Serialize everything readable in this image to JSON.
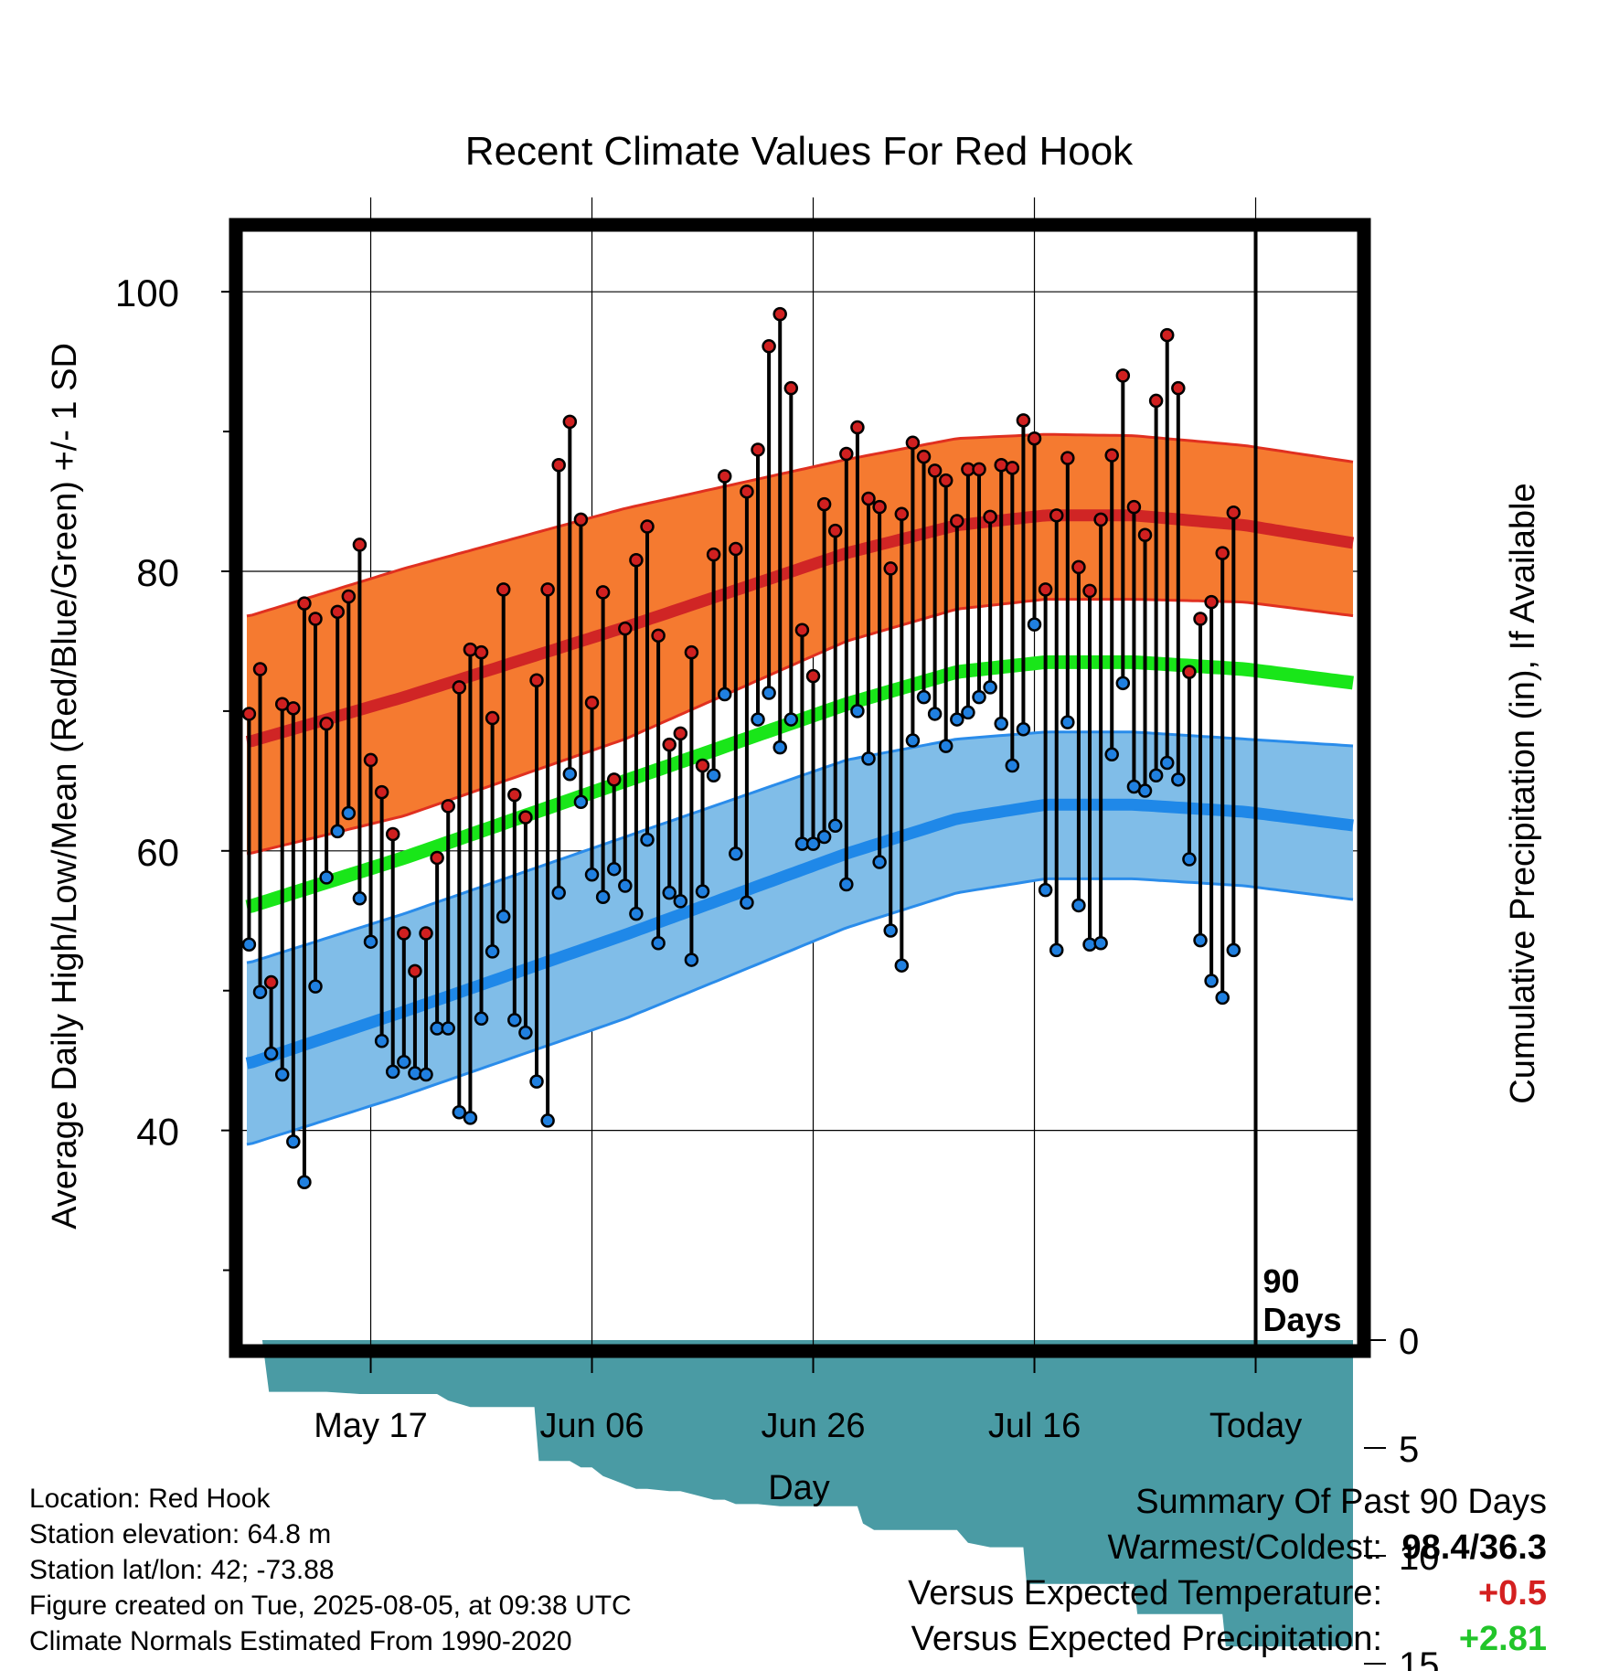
{
  "chart_data": {
    "type": "line",
    "title": "Recent Climate Values For Red Hook",
    "xlabel": "Day",
    "ylabel_left": "Average Daily High/Low/Mean (Red/Blue/Green) +/- 1 SD",
    "ylabel_right": "Cumulative Precipitation (in), If Available",
    "x_ticks": [
      {
        "day": 17,
        "label": "May 17"
      },
      {
        "day": 37,
        "label": "Jun 06"
      },
      {
        "day": 57,
        "label": "Jun 26"
      },
      {
        "day": 77,
        "label": "Jul 16"
      },
      {
        "day": 97,
        "label": "Today"
      }
    ],
    "xlim": [
      5.8,
      105.8
    ],
    "ylim_left": [
      25,
      104
    ],
    "y_ticks_left": [
      40,
      60,
      80,
      100
    ],
    "ylim_right": [
      0,
      15
    ],
    "y_ticks_right": [
      0,
      5,
      10,
      15
    ],
    "grid": true,
    "today_day": 97,
    "today_label": "90 Days",
    "normals": {
      "days": [
        6,
        20,
        40,
        60,
        70,
        78,
        86,
        96,
        106
      ],
      "high_mean": [
        67.8,
        71.0,
        76.0,
        81.3,
        83.3,
        84.0,
        84.0,
        83.3,
        82.0
      ],
      "high_upper": [
        76.8,
        80.2,
        84.5,
        88.0,
        89.5,
        89.8,
        89.7,
        89.0,
        87.8
      ],
      "high_lower": [
        59.8,
        62.5,
        68.0,
        75.0,
        77.3,
        78.0,
        78.0,
        77.8,
        76.8
      ],
      "mean": [
        56.0,
        59.5,
        65.0,
        70.5,
        72.8,
        73.5,
        73.5,
        73.0,
        72.0
      ],
      "low_mean": [
        44.8,
        48.5,
        54.0,
        59.8,
        62.3,
        63.3,
        63.3,
        62.8,
        61.8
      ],
      "low_upper": [
        52.0,
        55.5,
        61.0,
        66.5,
        68.0,
        68.5,
        68.5,
        68.0,
        67.5
      ],
      "low_lower": [
        39.0,
        42.5,
        48.0,
        54.5,
        57.0,
        58.0,
        58.0,
        57.5,
        56.5
      ]
    },
    "daily": {
      "start_day": 6,
      "high": [
        69.8,
        73.0,
        50.6,
        70.5,
        70.2,
        77.7,
        76.6,
        69.1,
        77.1,
        78.2,
        81.9,
        66.5,
        64.2,
        61.2,
        54.1,
        51.4,
        54.1,
        59.5,
        63.2,
        71.7,
        74.4,
        74.2,
        69.5,
        78.7,
        64.0,
        62.4,
        72.2,
        78.7,
        87.6,
        90.7,
        83.7,
        70.6,
        78.5,
        65.1,
        75.9,
        80.8,
        83.2,
        75.4,
        67.6,
        68.4,
        74.2,
        66.1,
        81.2,
        86.8,
        81.6,
        85.7,
        88.7,
        96.1,
        98.4,
        93.1,
        75.8,
        72.5,
        84.8,
        82.9,
        88.4,
        90.3,
        85.2,
        84.6,
        80.2,
        84.1,
        89.2,
        88.2,
        87.2,
        86.5,
        83.6,
        87.3,
        87.3,
        83.9,
        87.6,
        87.4,
        90.8,
        89.5,
        78.7,
        84.0,
        88.1,
        80.3,
        78.6,
        83.7,
        88.3,
        94.0,
        84.6,
        82.6,
        92.2,
        96.9,
        93.1,
        72.8,
        76.6,
        77.8,
        81.3,
        84.2
      ],
      "low": [
        53.3,
        49.9,
        45.5,
        44.0,
        39.2,
        36.3,
        50.3,
        58.1,
        61.4,
        62.7,
        56.6,
        53.5,
        46.4,
        44.2,
        44.9,
        44.1,
        44.0,
        47.3,
        47.3,
        41.3,
        40.9,
        48.0,
        52.8,
        55.3,
        47.9,
        47.0,
        43.5,
        40.7,
        57.0,
        65.5,
        63.5,
        58.3,
        56.7,
        58.7,
        57.5,
        55.5,
        60.8,
        53.4,
        57.0,
        56.4,
        52.2,
        57.1,
        65.4,
        71.2,
        59.8,
        56.3,
        69.4,
        71.3,
        67.4,
        69.4,
        60.5,
        60.5,
        61.0,
        61.8,
        57.6,
        70.0,
        66.6,
        59.2,
        54.3,
        51.8,
        67.9,
        71.0,
        69.8,
        67.5,
        69.4,
        69.9,
        71.0,
        71.7,
        69.1,
        66.1,
        68.7,
        76.2,
        57.2,
        52.9,
        69.2,
        56.1,
        53.3,
        53.4,
        66.9,
        72.0,
        64.6,
        64.3,
        65.4,
        66.3,
        65.1,
        59.4,
        53.6,
        50.7,
        49.5,
        52.9
      ]
    },
    "precip": {
      "days": [
        6,
        7.2,
        7.8,
        12,
        13,
        16,
        18,
        19,
        20,
        23,
        24,
        26,
        30,
        31.8,
        32.2,
        35,
        36,
        37,
        38,
        39,
        40,
        41,
        42,
        44,
        45,
        48,
        49,
        50,
        52,
        54,
        57,
        58,
        59,
        61,
        61.5,
        62.5,
        65,
        66,
        68,
        70,
        71,
        73,
        75,
        76,
        76.3,
        82,
        84,
        86,
        86.3,
        94,
        94.3,
        95.7,
        96,
        98,
        103.5,
        104,
        105.8
      ],
      "values": [
        0.0,
        0.0,
        2.4,
        2.4,
        2.4,
        2.5,
        2.5,
        2.5,
        2.5,
        2.5,
        2.8,
        3.1,
        3.1,
        3.1,
        5.6,
        5.6,
        5.9,
        5.9,
        6.3,
        6.5,
        6.7,
        6.9,
        6.9,
        7.0,
        7.0,
        7.4,
        7.4,
        7.6,
        7.6,
        7.7,
        7.7,
        7.7,
        7.7,
        7.7,
        8.5,
        8.8,
        8.8,
        8.8,
        8.8,
        8.8,
        9.4,
        9.6,
        9.6,
        9.6,
        11.3,
        11.3,
        11.3,
        11.3,
        12.7,
        12.7,
        14.2,
        14.2,
        14.2,
        14.2,
        14.2,
        14.2,
        14.2
      ]
    }
  },
  "info": {
    "location": "Location: Red Hook",
    "elevation": "Station elevation: 64.8 m",
    "latlon": "Station lat/lon: 42; -73.88",
    "created": "Figure created on Tue, 2025-08-05, at 09:38 UTC",
    "normals": "Climate Normals Estimated From 1990-2020"
  },
  "summary": {
    "title": "Summary Of Past 90 Days",
    "warm_cold_label": "Warmest/Coldest:",
    "warm_cold_value": "98.4/36.3",
    "temp_label": "Versus Expected Temperature:",
    "temp_value": "+0.5",
    "precip_label": "Versus Expected Precipitation:",
    "precip_value": "+2.81"
  },
  "colors": {
    "high_band": "#f57a30",
    "high_line": "#d02525",
    "high_edge": "#e03020",
    "low_band": "#80bde8",
    "low_line": "#1f88e8",
    "low_edge": "#2a8cea",
    "mean_line": "#19e619",
    "precip": "#4a9ba4",
    "high_dot": "#d02020",
    "low_dot": "#2080e0",
    "warm_text": "#d42020",
    "wet_text": "#22c52a"
  }
}
